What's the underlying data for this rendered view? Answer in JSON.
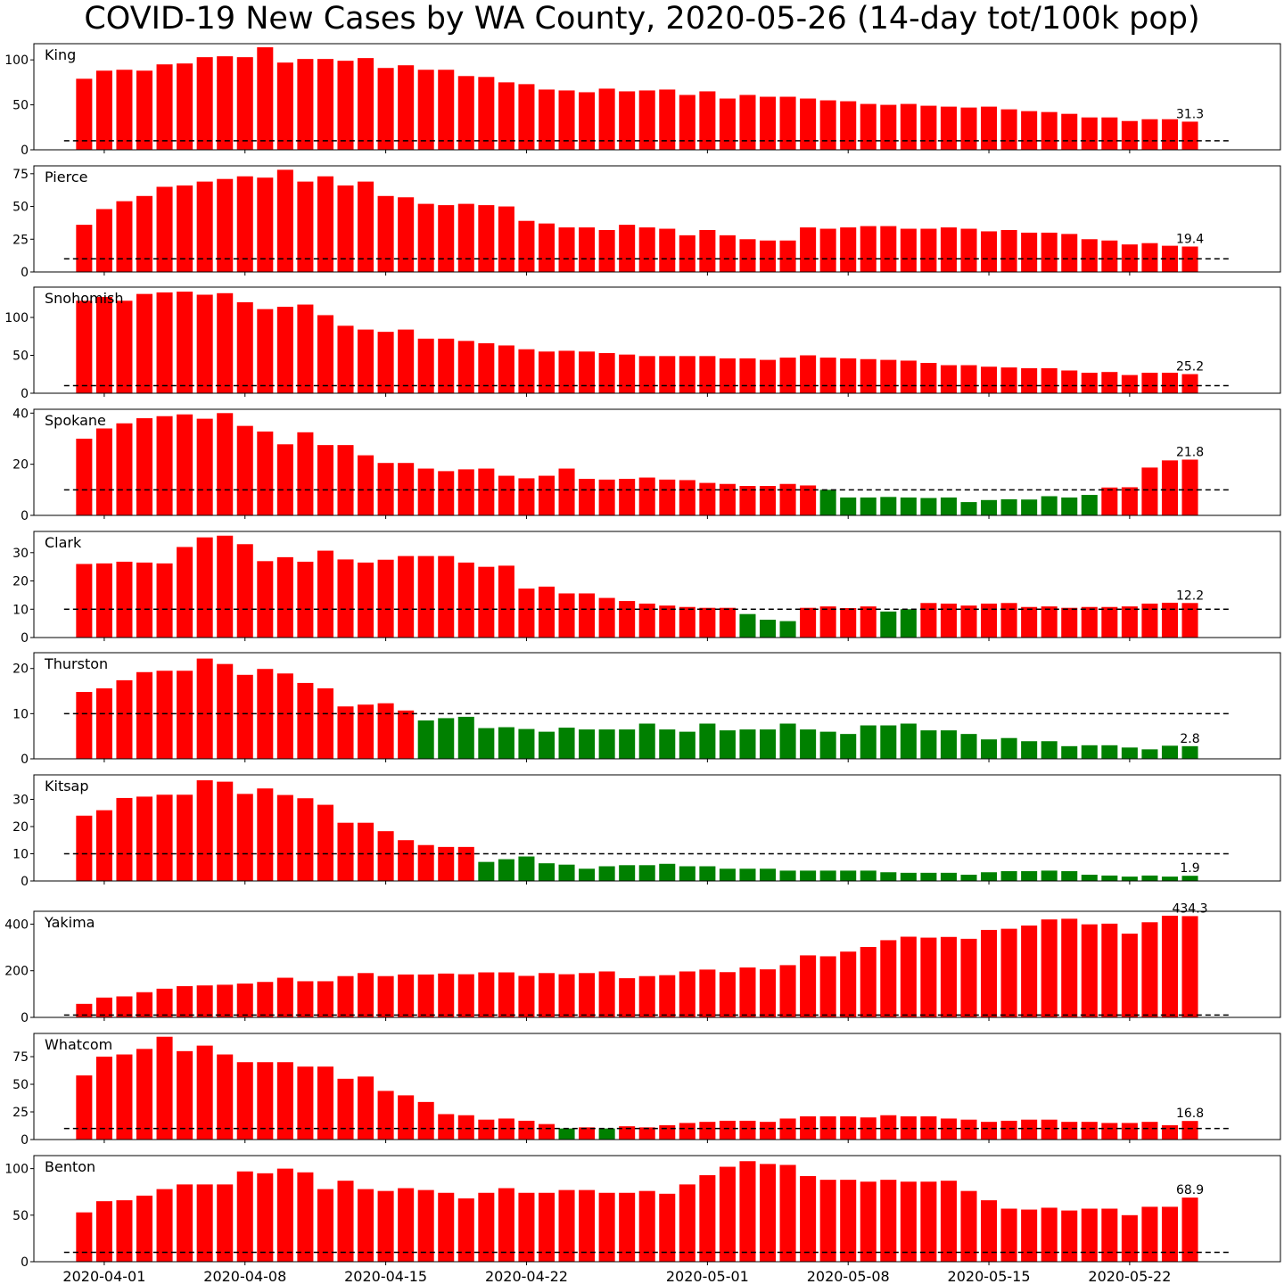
{
  "title": "COVID-19 New Cases by WA County, 2020-05-26 (14-day tot/100k pop)",
  "colors": {
    "above": "#ff0000",
    "below": "#008000",
    "threshold_line": "#000000"
  },
  "x_ticks": [
    "2020-04-01",
    "2020-04-08",
    "2020-04-15",
    "2020-04-22",
    "2020-05-01",
    "2020-05-08",
    "2020-05-15",
    "2020-05-22"
  ],
  "chart_data": {
    "type": "bar",
    "x_start": "2020-03-31",
    "x_end": "2020-05-26",
    "x_ticks": [
      "2020-04-01",
      "2020-04-08",
      "2020-04-15",
      "2020-04-22",
      "2020-05-01",
      "2020-05-08",
      "2020-05-15",
      "2020-05-22"
    ],
    "threshold": 10,
    "color_rule": "red when value > 10, green when value <= 10",
    "panels": [
      {
        "name": "King",
        "ylim": [
          0,
          118
        ],
        "yticks": [
          0,
          50,
          100
        ],
        "last_label": "31.3",
        "values": [
          79,
          88,
          89,
          88,
          95,
          96,
          103,
          104,
          103,
          114,
          97,
          101,
          101,
          99,
          102,
          91,
          94,
          89,
          89,
          82,
          81,
          75,
          73,
          67,
          66,
          64,
          68,
          65,
          66,
          67,
          61,
          65,
          57,
          61,
          59,
          59,
          57,
          55,
          54,
          51,
          50,
          51,
          49,
          48,
          47,
          48,
          45,
          43,
          42,
          40,
          36,
          36,
          32,
          34,
          34,
          31.3
        ]
      },
      {
        "name": "Pierce",
        "ylim": [
          0,
          81
        ],
        "yticks": [
          0,
          25,
          50,
          75
        ],
        "last_label": "19.4",
        "values": [
          36,
          48,
          54,
          58,
          65,
          66,
          69,
          71,
          73,
          72,
          78,
          69,
          73,
          66,
          69,
          58,
          57,
          52,
          51,
          52,
          51,
          50,
          39,
          37,
          34,
          34,
          32,
          36,
          34,
          33,
          28,
          32,
          28,
          25,
          24,
          24,
          34,
          33,
          34,
          35,
          35,
          33,
          33,
          34,
          33,
          31,
          32,
          30,
          30,
          29,
          25,
          24,
          21,
          22,
          20,
          19.4
        ]
      },
      {
        "name": "Snohomish",
        "ylim": [
          0,
          140
        ],
        "yticks": [
          0,
          50,
          100
        ],
        "last_label": "25.2",
        "values": [
          122,
          127,
          122,
          131,
          133,
          134,
          130,
          132,
          120,
          111,
          114,
          117,
          103,
          89,
          84,
          81,
          84,
          72,
          72,
          69,
          66,
          63,
          58,
          55,
          56,
          55,
          53,
          51,
          49,
          49,
          49,
          49,
          46,
          46,
          44,
          47,
          50,
          47,
          46,
          45,
          44,
          43,
          40,
          37,
          37,
          35,
          34,
          33,
          33,
          30,
          27,
          28,
          24,
          27,
          27,
          25.2
        ]
      },
      {
        "name": "Spokane",
        "ylim": [
          0,
          41.5
        ],
        "yticks": [
          0,
          20,
          40
        ],
        "last_label": "21.8",
        "values": [
          30,
          34,
          36,
          38,
          38.8,
          39.5,
          37.8,
          40,
          35,
          32.8,
          27.8,
          32.5,
          27.5,
          27.5,
          23.5,
          20.5,
          20.5,
          18.3,
          17.3,
          18,
          18.3,
          15.5,
          14.5,
          15.5,
          18.3,
          14.3,
          14,
          14.3,
          14.8,
          14,
          13.8,
          12.7,
          12.3,
          11.5,
          11.5,
          12.3,
          11.7,
          10,
          7,
          7,
          7.2,
          7,
          6.8,
          7,
          5.2,
          6,
          6.3,
          6.2,
          7.5,
          7,
          8,
          10.9,
          11,
          18.7,
          21.5,
          21.8
        ]
      },
      {
        "name": "Clark",
        "ylim": [
          0,
          37.5
        ],
        "yticks": [
          0,
          10,
          20,
          30
        ],
        "last_label": "12.2",
        "values": [
          26,
          26.2,
          26.8,
          26.5,
          26.2,
          32,
          35.4,
          36,
          33,
          27,
          28.4,
          26.8,
          30.7,
          27.6,
          26.5,
          27.5,
          28.8,
          28.8,
          28.8,
          26.5,
          25,
          25.4,
          17.3,
          18,
          15.6,
          15.6,
          14,
          12.9,
          12,
          11.3,
          10.8,
          10.5,
          10.5,
          8.3,
          6.3,
          5.8,
          10.5,
          11,
          10.4,
          11,
          9.2,
          10,
          12.2,
          12,
          11.3,
          12,
          12.2,
          10.8,
          11,
          10.5,
          10.8,
          10.8,
          11,
          12,
          12.3,
          12.2
        ]
      },
      {
        "name": "Thurston",
        "ylim": [
          0,
          23.5
        ],
        "yticks": [
          0,
          10,
          20
        ],
        "last_label": "2.8",
        "values": [
          14.8,
          15.6,
          17.4,
          19.2,
          19.5,
          19.5,
          22.2,
          21,
          18.6,
          19.9,
          18.9,
          16.8,
          15.6,
          11.6,
          12,
          12.3,
          10.7,
          8.5,
          9,
          9.3,
          6.8,
          7,
          6.6,
          6,
          6.9,
          6.5,
          6.5,
          6.5,
          7.8,
          6.5,
          6,
          7.8,
          6.3,
          6.5,
          6.5,
          7.8,
          6.5,
          6,
          5.5,
          7.4,
          7.4,
          7.8,
          6.3,
          6.3,
          5.5,
          4.3,
          4.6,
          3.9,
          3.9,
          2.8,
          3,
          3,
          2.5,
          2.1,
          2.9,
          2.8
        ]
      },
      {
        "name": "Kitsap",
        "ylim": [
          0,
          39
        ],
        "yticks": [
          0,
          10,
          20,
          30
        ],
        "last_label": "1.9",
        "values": [
          24,
          26,
          30.5,
          31,
          31.7,
          31.7,
          37,
          36.5,
          32,
          34,
          31.6,
          30.4,
          28,
          21.4,
          21.4,
          18.3,
          15,
          13.2,
          12.5,
          12.5,
          7,
          8,
          9,
          6.5,
          6,
          4.5,
          5.4,
          5.8,
          5.8,
          6.3,
          5.4,
          5.4,
          4.5,
          4.5,
          4.5,
          3.8,
          3.8,
          3.8,
          3.8,
          3.8,
          3.2,
          3,
          3,
          3,
          2.3,
          3.2,
          3.6,
          3.6,
          3.8,
          3.6,
          2.3,
          2,
          1.6,
          2,
          1.6,
          1.9
        ]
      },
      {
        "name": "Yakima",
        "ylim": [
          0,
          455
        ],
        "yticks": [
          0,
          200,
          400
        ],
        "last_label": "434.3",
        "values": [
          58,
          85,
          90,
          108,
          123,
          134,
          137,
          140,
          145,
          152,
          170,
          155,
          155,
          177,
          190,
          177,
          184,
          184,
          188,
          185,
          193,
          193,
          178,
          190,
          185,
          190,
          197,
          168,
          177,
          181,
          197,
          205,
          194,
          214,
          206,
          224,
          266,
          262,
          282,
          302,
          331,
          346,
          342,
          345,
          337,
          375,
          380,
          394,
          420,
          423,
          399,
          402,
          359,
          408,
          436,
          434.3
        ]
      },
      {
        "name": "Whatcom",
        "ylim": [
          0,
          96
        ],
        "yticks": [
          0,
          25,
          50,
          75
        ],
        "last_label": "16.8",
        "values": [
          58,
          75,
          77,
          82,
          93,
          80,
          85,
          77,
          70,
          70,
          70,
          66,
          66,
          55,
          57,
          44,
          40,
          34,
          23,
          22,
          18,
          19,
          17,
          14,
          10,
          11,
          10,
          12,
          11,
          13,
          15,
          16,
          17,
          17,
          16,
          19,
          21,
          21,
          21,
          20,
          22,
          21,
          21,
          19,
          18,
          16,
          17,
          18,
          18,
          16,
          16,
          15,
          15,
          16,
          13,
          16.8
        ]
      },
      {
        "name": "Benton",
        "ylim": [
          0,
          114
        ],
        "yticks": [
          0,
          50,
          100
        ],
        "last_label": "68.9",
        "values": [
          53,
          65,
          66,
          71,
          78,
          83,
          83,
          83,
          97,
          95,
          100,
          96,
          78,
          87,
          78,
          76,
          79,
          77,
          74,
          68,
          74,
          79,
          74,
          74,
          77,
          77,
          74,
          74,
          76,
          73,
          83,
          93,
          102,
          108,
          105,
          104,
          92,
          88,
          88,
          86,
          88,
          86,
          86,
          87,
          76,
          66,
          57,
          56,
          58,
          55,
          57,
          57,
          50,
          59,
          59,
          68.9
        ]
      }
    ]
  }
}
